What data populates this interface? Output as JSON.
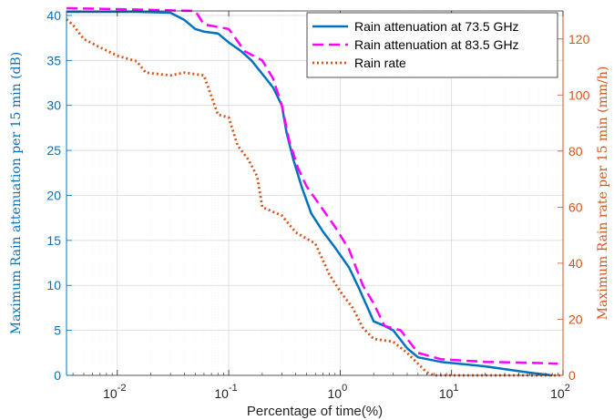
{
  "chart_data": {
    "type": "line",
    "xlabel": "Percentage of time(%)",
    "xscale": "log",
    "xlim": [
      0.0035,
      100
    ],
    "x_ticks": [
      {
        "base": "10",
        "exp": "-2"
      },
      {
        "base": "10",
        "exp": "-1"
      },
      {
        "base": "10",
        "exp": "0"
      },
      {
        "base": "10",
        "exp": "1"
      },
      {
        "base": "10",
        "exp": "2"
      }
    ],
    "ylabel_left": "Maximum Rain attenuation per 15 min (dB)",
    "ylim_left": [
      0,
      40.5
    ],
    "yticks_left": [
      "0",
      "5",
      "10",
      "15",
      "20",
      "25",
      "30",
      "35",
      "40"
    ],
    "ylabel_right": "Maximum Rain rate per 15 min (mm/h)",
    "ylim_right": [
      0,
      130
    ],
    "yticks_right": [
      "0",
      "20",
      "40",
      "60",
      "80",
      "100",
      "120"
    ],
    "grid": true,
    "legend_position": "top-right",
    "series": [
      {
        "name": "Rain attenuation at 73.5 GHz",
        "axis": "left",
        "color": "#0072BD",
        "style": "solid",
        "points": [
          [
            0.0035,
            40.4
          ],
          [
            0.015,
            40.4
          ],
          [
            0.03,
            40.3
          ],
          [
            0.04,
            39.5
          ],
          [
            0.05,
            38.5
          ],
          [
            0.06,
            38.2
          ],
          [
            0.08,
            38.0
          ],
          [
            0.1,
            37.0
          ],
          [
            0.13,
            36.0
          ],
          [
            0.16,
            35.0
          ],
          [
            0.2,
            33.5
          ],
          [
            0.25,
            32.0
          ],
          [
            0.3,
            30.0
          ],
          [
            0.33,
            27.0
          ],
          [
            0.38,
            24.0
          ],
          [
            0.45,
            21.0
          ],
          [
            0.55,
            18.0
          ],
          [
            0.7,
            16.0
          ],
          [
            0.9,
            14.2
          ],
          [
            1.2,
            12.0
          ],
          [
            1.5,
            9.5
          ],
          [
            2.0,
            6.0
          ],
          [
            2.5,
            5.5
          ],
          [
            3.0,
            5.0
          ],
          [
            4.0,
            3.0
          ],
          [
            5.0,
            2.0
          ],
          [
            8.0,
            1.5
          ],
          [
            20,
            1.0
          ],
          [
            50,
            0.3
          ],
          [
            80,
            0.0
          ]
        ]
      },
      {
        "name": "Rain attenuation at 83.5 GHz",
        "axis": "left",
        "color": "#FF00FF",
        "style": "dashed",
        "points": [
          [
            0.0035,
            40.8
          ],
          [
            0.01,
            40.7
          ],
          [
            0.05,
            40.5
          ],
          [
            0.06,
            39.0
          ],
          [
            0.1,
            38.5
          ],
          [
            0.14,
            36.0
          ],
          [
            0.2,
            35.0
          ],
          [
            0.25,
            33.0
          ],
          [
            0.3,
            30.0
          ],
          [
            0.35,
            26.0
          ],
          [
            0.42,
            23.0
          ],
          [
            0.5,
            21.0
          ],
          [
            0.65,
            19.0
          ],
          [
            0.9,
            16.5
          ],
          [
            1.2,
            14.0
          ],
          [
            1.6,
            10.0
          ],
          [
            2.0,
            8.0
          ],
          [
            2.5,
            5.5
          ],
          [
            3.5,
            5.0
          ],
          [
            5.0,
            2.5
          ],
          [
            8.0,
            1.8
          ],
          [
            20,
            1.5
          ],
          [
            50,
            1.4
          ],
          [
            90,
            1.3
          ]
        ]
      },
      {
        "name": "Rain rate",
        "axis": "right",
        "color": "#D95319",
        "style": "dotted",
        "points": [
          [
            0.0035,
            127
          ],
          [
            0.004,
            125
          ],
          [
            0.005,
            120
          ],
          [
            0.007,
            117
          ],
          [
            0.01,
            114
          ],
          [
            0.015,
            112
          ],
          [
            0.018,
            108
          ],
          [
            0.03,
            107
          ],
          [
            0.04,
            108
          ],
          [
            0.06,
            107
          ],
          [
            0.08,
            93
          ],
          [
            0.1,
            92
          ],
          [
            0.12,
            82
          ],
          [
            0.15,
            77
          ],
          [
            0.18,
            71
          ],
          [
            0.2,
            60
          ],
          [
            0.3,
            57
          ],
          [
            0.4,
            51
          ],
          [
            0.6,
            47
          ],
          [
            0.8,
            36
          ],
          [
            1.0,
            30
          ],
          [
            1.3,
            24
          ],
          [
            1.6,
            17
          ],
          [
            2.0,
            13
          ],
          [
            3.0,
            12
          ],
          [
            4.0,
            8
          ],
          [
            6.0,
            1
          ],
          [
            7.0,
            0
          ],
          [
            100,
            0
          ]
        ]
      }
    ]
  }
}
